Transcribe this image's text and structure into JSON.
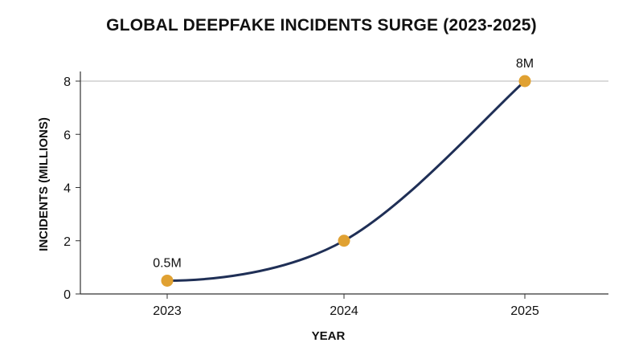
{
  "chart_data": {
    "type": "line",
    "title": "GLOBAL DEEPFAKE INCIDENTS SURGE (2023-2025)",
    "xlabel": "YEAR",
    "ylabel": "INCIDENTS (MILLIONS)",
    "categories": [
      "2023",
      "2024",
      "2025"
    ],
    "series": [
      {
        "values": [
          0.5,
          2,
          8
        ],
        "data_labels": [
          "0.5M",
          "",
          "8M"
        ]
      }
    ],
    "ylim": [
      0,
      8
    ],
    "yticks": [
      0,
      2,
      4,
      6,
      8
    ],
    "line_color": "#1f2f56",
    "marker_color": "#e0a132",
    "grid": false,
    "reference_line_at": 8,
    "legend": "none"
  }
}
